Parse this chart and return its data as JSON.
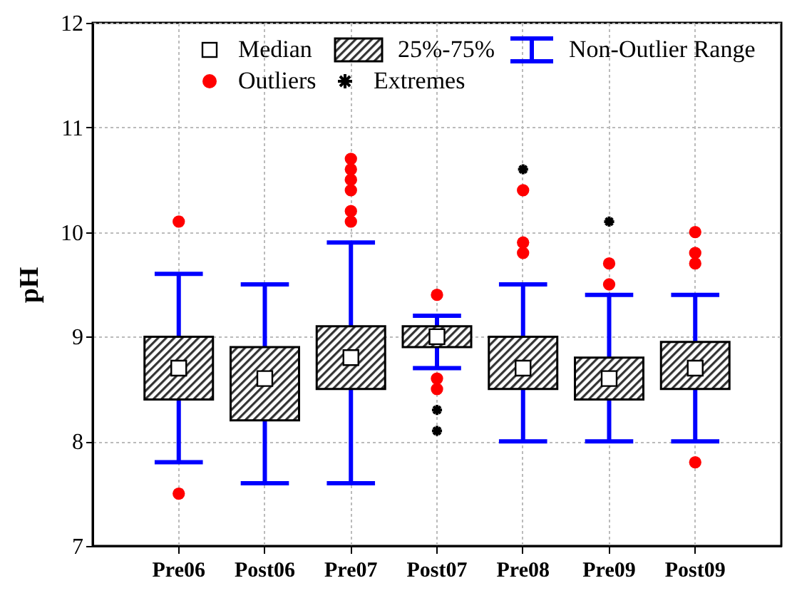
{
  "chart_data": {
    "type": "box",
    "ylabel": "pH",
    "categories": [
      "Pre06",
      "Post06",
      "Pre07",
      "Post07",
      "Pre08",
      "Pre09",
      "Post09"
    ],
    "ylim": [
      7,
      12
    ],
    "yticks": [
      7,
      8,
      9,
      10,
      11,
      12
    ],
    "grid": true,
    "legend": "top",
    "annotations": [
      "Median",
      "25%-75%",
      "Non-Outlier Range",
      "Outliers"
    ],
    "series": [
      {
        "boxes": [
          {
            "low": 7.8,
            "q1": 8.4,
            "median": 8.7,
            "q3": 9.0,
            "high": 9.6,
            "outliers": [
              10.1,
              7.5
            ]
          },
          {
            "low": 7.6,
            "q1": 8.2,
            "median": 8.6,
            "q3": 8.9,
            "high": 9.5
          },
          {
            "low": 7.6,
            "q1": 8.5,
            "median": 8.8,
            "q3": 9.1,
            "high": 9.9,
            "outliers": [
              10.1,
              10.2,
              10.4,
              10.5,
              10.6,
              10.7
            ]
          },
          {
            "low": 8.7,
            "q1": 8.9,
            "median": 9.0,
            "q3": 9.1,
            "high": 9.2,
            "outliers": [
              9.4,
              8.6,
              8.5
            ]
          },
          {
            "low": 8.0,
            "q1": 8.5,
            "median": 8.7,
            "q3": 9.0,
            "high": 9.5,
            "outliers": [
              10.4,
              9.9,
              9.8
            ]
          },
          {
            "low": 8.0,
            "q1": 8.4,
            "median": 8.6,
            "q3": 8.8,
            "high": 9.4,
            "outliers": [
              9.7,
              9.5
            ]
          },
          {
            "low": 8.0,
            "q1": 8.5,
            "median": 8.7,
            "q3": 8.95,
            "high": 9.4,
            "outliers": [
              10.0,
              9.8,
              9.7,
              7.8
            ]
          }
        ]
      },
      {
        "type": "scatter",
        "name": "Extremes",
        "color": "#000000",
        "marker": "cross",
        "x": [
          "Post07",
          "Post07",
          "Pre08",
          "Pre09"
        ],
        "values": [
          8.3,
          8.1,
          10.6,
          10.1
        ]
      }
    ]
  }
}
